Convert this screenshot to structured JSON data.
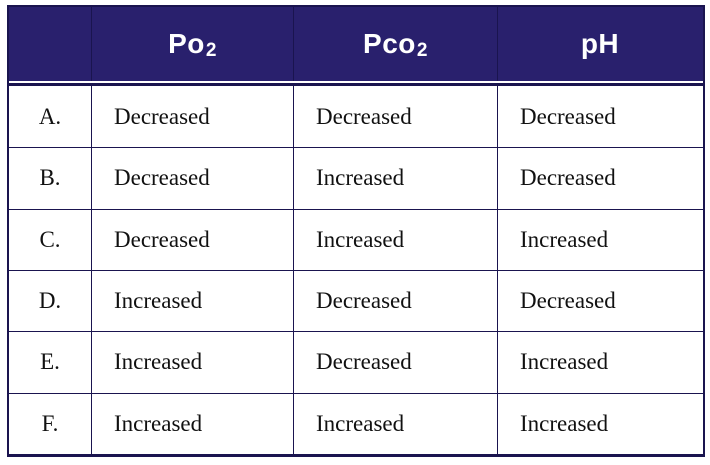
{
  "table": {
    "headers": [
      {
        "text": "",
        "sub": ""
      },
      {
        "text": "Po",
        "sub": "2"
      },
      {
        "text": "Pco",
        "sub": "2"
      },
      {
        "text": "pH",
        "sub": ""
      }
    ],
    "rows": [
      {
        "label": "A.",
        "po2": "Decreased",
        "pco2": "Decreased",
        "ph": "Decreased"
      },
      {
        "label": "B.",
        "po2": "Decreased",
        "pco2": "Increased",
        "ph": "Decreased"
      },
      {
        "label": "C.",
        "po2": "Decreased",
        "pco2": "Increased",
        "ph": "Increased"
      },
      {
        "label": "D.",
        "po2": "Increased",
        "pco2": "Decreased",
        "ph": "Decreased"
      },
      {
        "label": "E.",
        "po2": "Increased",
        "pco2": "Decreased",
        "ph": "Increased"
      },
      {
        "label": "F.",
        "po2": "Increased",
        "pco2": "Increased",
        "ph": "Increased"
      }
    ],
    "colors": {
      "header_bg": "#29206d",
      "header_text": "#ffffff",
      "border": "#1a144f",
      "body_text": "#111111"
    }
  }
}
